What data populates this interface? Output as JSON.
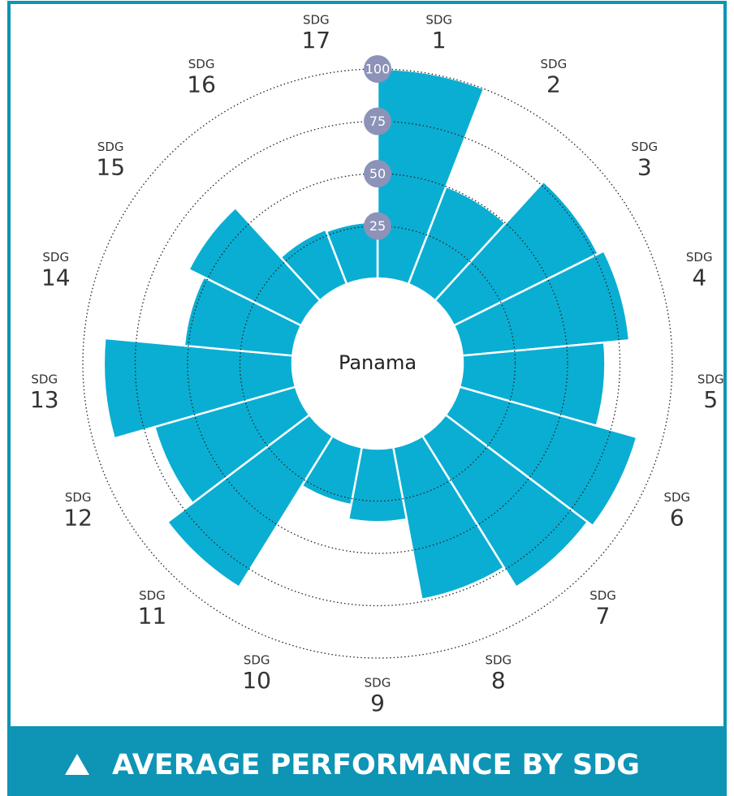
{
  "chart_data": {
    "type": "polar_bar",
    "title": "AVERAGE PERFORMANCE BY SDG",
    "center_label": "Panama",
    "axis_label": "SDG",
    "categories": [
      "1",
      "2",
      "3",
      "4",
      "5",
      "6",
      "7",
      "8",
      "9",
      "10",
      "11",
      "12",
      "13",
      "14",
      "15",
      "16",
      "17"
    ],
    "values": [
      100,
      50,
      77,
      80,
      68,
      88,
      85,
      74,
      35,
      28,
      85,
      70,
      90,
      52,
      60,
      28,
      27
    ],
    "color": "#0aaed3",
    "ylim": [
      0,
      100
    ],
    "yticks": [
      25,
      50,
      75,
      100
    ]
  }
}
